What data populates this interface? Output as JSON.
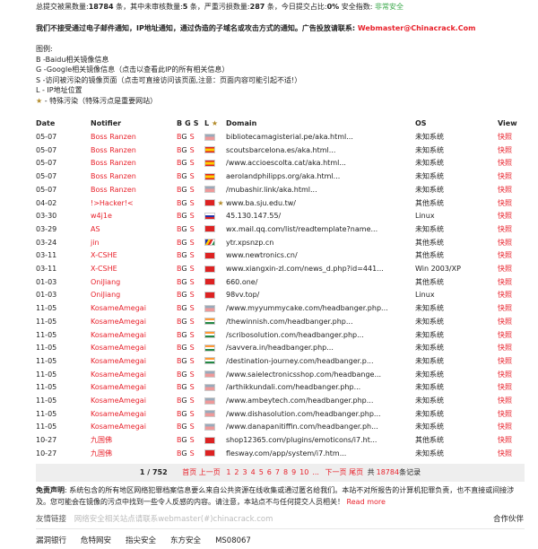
{
  "stats": {
    "text1": "总提交被黑数量:",
    "total": "18784",
    "text2": " 条，其中未审核数量:",
    "unreviewed": "5",
    "text3": " 条，严重污损数量:",
    "severe": "287",
    "text4": " 条，今日提交占比:",
    "today": "0%",
    "text5": "  安全指数: ",
    "safety": "非常安全"
  },
  "notice": {
    "text": "我们不接受通过电子邮件通知，IP地址通知，通过伪造的子域名或攻击方式的通知。广告投放请联系: ",
    "email": "Webmaster@Chinacrack.Com"
  },
  "legend": [
    "图例:",
    "B -Baidu相关镜像信息",
    "G -Google相关镜像信息（点击以查看此IP的所有相关信息）",
    "S -访问被污染的镜像页面（点击可直接访问该页面,注意：页面内容可能引起不适!）",
    "L - IP地址位置",
    "- 特殊污染（特殊污点是重要网站）"
  ],
  "table": {
    "headers": {
      "date": "Date",
      "notifier": "Notifier",
      "b": "B",
      "g": "G",
      "s": "S",
      "l": "L",
      "domain": "Domain",
      "os": "OS",
      "view": "View"
    },
    "rows": [
      {
        "date": "05-07",
        "notifier": "Boss Ranzen",
        "flag": "us",
        "star": false,
        "domain": "bibliotecamagisterial.pe/aka.html...",
        "os": "未知系统",
        "view": "快照"
      },
      {
        "date": "05-07",
        "notifier": "Boss Ranzen",
        "flag": "es",
        "star": false,
        "domain": "scoutsbarcelona.es/aka.html...",
        "os": "未知系统",
        "view": "快照"
      },
      {
        "date": "05-07",
        "notifier": "Boss Ranzen",
        "flag": "es",
        "star": false,
        "domain": "/www.accioescolta.cat/aka.html...",
        "os": "未知系统",
        "view": "快照"
      },
      {
        "date": "05-07",
        "notifier": "Boss Ranzen",
        "flag": "es",
        "star": false,
        "domain": "aerolandphilipps.org/aka.html...",
        "os": "未知系统",
        "view": "快照"
      },
      {
        "date": "05-07",
        "notifier": "Boss Ranzen",
        "flag": "us",
        "star": false,
        "domain": "/mubashir.link/aka.html...",
        "os": "未知系统",
        "view": "快照"
      },
      {
        "date": "04-02",
        "notifier": "!>Hacker!<",
        "flag": "tw",
        "star": true,
        "domain": "www.ba.sju.edu.tw/",
        "os": "其他系统",
        "view": "快照"
      },
      {
        "date": "03-30",
        "notifier": "w4j1e",
        "flag": "ru",
        "star": false,
        "domain": "45.130.147.55/",
        "os": "Linux",
        "view": "快照"
      },
      {
        "date": "03-29",
        "notifier": "AS",
        "flag": "hk",
        "star": false,
        "domain": "wx.mail.qq.com/list/readtemplate?name...",
        "os": "未知系统",
        "view": "快照"
      },
      {
        "date": "03-24",
        "notifier": "jin",
        "flag": "sc",
        "star": false,
        "domain": "ytr.xpsnzp.cn",
        "os": "其他系统",
        "view": "快照"
      },
      {
        "date": "03-11",
        "notifier": "X-CSHE",
        "flag": "cn",
        "star": false,
        "domain": "www.newtronics.cn/",
        "os": "其他系统",
        "view": "快照"
      },
      {
        "date": "03-11",
        "notifier": "X-CSHE",
        "flag": "cn",
        "star": false,
        "domain": "www.xiangxin-zl.com/news_d.php?id=441...",
        "os": "Win 2003/XP",
        "view": "快照"
      },
      {
        "date": "01-03",
        "notifier": "OniJiang",
        "flag": "hk",
        "star": false,
        "domain": "660.one/",
        "os": "其他系统",
        "view": "快照"
      },
      {
        "date": "01-03",
        "notifier": "OniJiang",
        "flag": "hk",
        "star": false,
        "domain": "98vv.top/",
        "os": "Linux",
        "view": "快照"
      },
      {
        "date": "11-05",
        "notifier": "KosameAmegai",
        "flag": "us",
        "star": false,
        "domain": "/www.myyummycake.com/headbanger.php...",
        "os": "未知系统",
        "view": "快照"
      },
      {
        "date": "11-05",
        "notifier": "KosameAmegai",
        "flag": "in",
        "star": false,
        "domain": "/thewinnish.com/headbanger.php...",
        "os": "未知系统",
        "view": "快照"
      },
      {
        "date": "11-05",
        "notifier": "KosameAmegai",
        "flag": "in",
        "star": false,
        "domain": "/scribosolution.com/headbanger.php...",
        "os": "未知系统",
        "view": "快照"
      },
      {
        "date": "11-05",
        "notifier": "KosameAmegai",
        "flag": "in",
        "star": false,
        "domain": "/savvera.in/headbanger.php...",
        "os": "未知系统",
        "view": "快照"
      },
      {
        "date": "11-05",
        "notifier": "KosameAmegai",
        "flag": "in",
        "star": false,
        "domain": "/destination-journey.com/headbanger.p...",
        "os": "未知系统",
        "view": "快照"
      },
      {
        "date": "11-05",
        "notifier": "KosameAmegai",
        "flag": "us",
        "star": false,
        "domain": "/www.saielectronicsshop.com/headbange...",
        "os": "未知系统",
        "view": "快照"
      },
      {
        "date": "11-05",
        "notifier": "KosameAmegai",
        "flag": "us",
        "star": false,
        "domain": "/arthikkundali.com/headbanger.php...",
        "os": "未知系统",
        "view": "快照"
      },
      {
        "date": "11-05",
        "notifier": "KosameAmegai",
        "flag": "us",
        "star": false,
        "domain": "/www.ambeytech.com/headbanger.php...",
        "os": "未知系统",
        "view": "快照"
      },
      {
        "date": "11-05",
        "notifier": "KosameAmegai",
        "flag": "us",
        "star": false,
        "domain": "/www.dishasolution.com/headbanger.php...",
        "os": "未知系统",
        "view": "快照"
      },
      {
        "date": "11-05",
        "notifier": "KosameAmegai",
        "flag": "us",
        "star": false,
        "domain": "/www.danapanitiffin.com/headbanger.ph...",
        "os": "未知系统",
        "view": "快照"
      },
      {
        "date": "10-27",
        "notifier": "九国佛",
        "flag": "hk",
        "star": false,
        "domain": "shop12365.com/plugins/emoticons/i7.ht...",
        "os": "其他系统",
        "view": "快照"
      },
      {
        "date": "10-27",
        "notifier": "九国佛",
        "flag": "cn",
        "star": false,
        "domain": "flesway.com/app/system/i7.htm...",
        "os": "未知系统",
        "view": "快照"
      }
    ]
  },
  "pager": {
    "current": "1 / 752",
    "first": "首页",
    "prev": "上一页",
    "pages": [
      "1",
      "2",
      "3",
      "4",
      "5",
      "6",
      "7",
      "8",
      "9",
      "10",
      "..."
    ],
    "next": "下一页",
    "last": "尾页",
    "total_pre": "共",
    "total": "18784",
    "total_post": "条记录"
  },
  "disclaimer": {
    "label": "免责声明",
    "text": ": 系统包含的所有地区网络犯罪档案信息要么来自公共资源在线收集或通过匿名给我们。本站不对所报告的计算机犯罪负责，也不直接或间接涉及。您可能会在镜像的污点中找到一些令人反感的内容。请注意，本站点不与任何提交人员相关！",
    "more": "Read more"
  },
  "footer": {
    "links_label": "友情链接",
    "links_text": "网络安全相关站点请联系webmaster(#)chinacrack.com",
    "partners": "合作伙伴",
    "items": [
      "漏洞银行",
      "危特网安",
      "指尖安全",
      "东方安全",
      "MS08067"
    ]
  },
  "colors": {
    "accent": "#e8212b",
    "safe": "#3aa84a"
  }
}
